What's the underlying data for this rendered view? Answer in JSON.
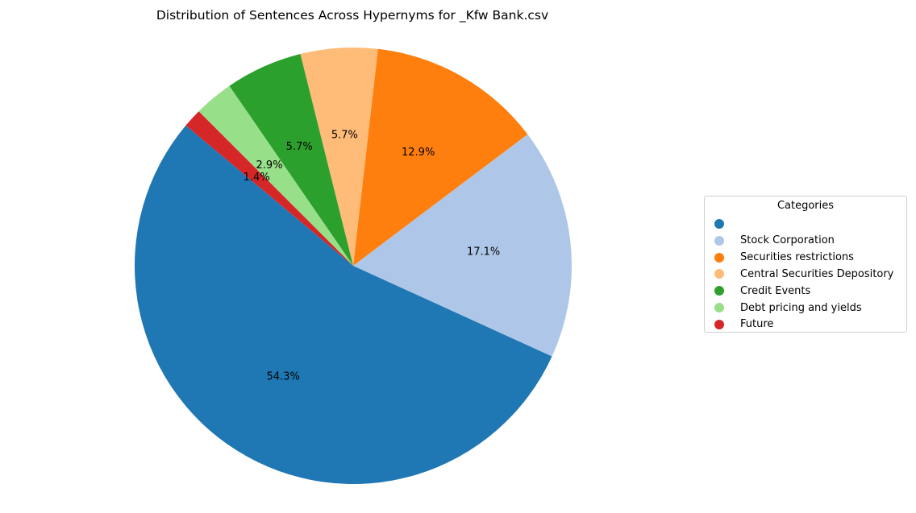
{
  "chart_data": {
    "type": "pie",
    "title": "Distribution of Sentences Across Hypernyms for _Kfw Bank.csv",
    "legend_title": "Categories",
    "legend_position": "right",
    "categories": [
      "",
      "Stock Corporation",
      "Securities restrictions",
      "Central Securities Depository",
      "Credit Events",
      "Debt pricing and yields",
      "Future"
    ],
    "values": [
      54.3,
      17.1,
      12.9,
      5.7,
      5.7,
      2.9,
      1.4
    ],
    "value_labels": [
      "54.3%",
      "17.1%",
      "12.9%",
      "5.7%",
      "5.7%",
      "2.9%",
      "1.4%"
    ],
    "colors": [
      "#1f77b4",
      "#aec7e8",
      "#ff7f0e",
      "#ffbb78",
      "#2ca02c",
      "#98df8a",
      "#d62728"
    ],
    "start_angle_deg": 140,
    "direction": "counterclockwise"
  }
}
